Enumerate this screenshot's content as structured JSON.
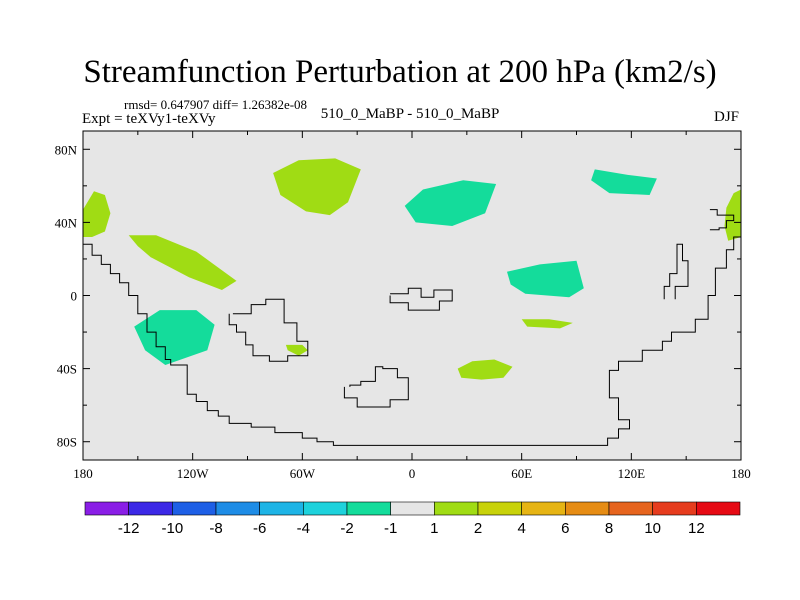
{
  "chart_data": {
    "type": "contour-map",
    "title": "Streamfunction Perturbation at 200 hPa (km2/s)",
    "stats": "rmsd= 0.647907 diff= 1.26382e-08",
    "left_label": "Expt = teXVy1-teXVy",
    "center_label": "510_0_MaBP - 510_0_MaBP",
    "right_label": "DJF",
    "x_ticks": [
      "180",
      "120W",
      "60W",
      "0",
      "60E",
      "120E",
      "180"
    ],
    "x_tick_values": [
      -180,
      -120,
      -60,
      0,
      60,
      120,
      180
    ],
    "y_ticks": [
      "80N",
      "40N",
      "0",
      "40S",
      "80S"
    ],
    "y_tick_values": [
      80,
      40,
      0,
      -40,
      -80
    ],
    "xlim": [
      -180,
      180
    ],
    "ylim": [
      -90,
      90
    ],
    "colorbar": {
      "levels": [
        "-12",
        "-10",
        "-8",
        "-6",
        "-4",
        "-2",
        "-1",
        "1",
        "2",
        "4",
        "6",
        "8",
        "10",
        "12"
      ],
      "colors": [
        "#8a1ee6",
        "#3c28e6",
        "#1e5fe6",
        "#1e8ce6",
        "#1eb4e6",
        "#1ed2dc",
        "#14dc9b",
        "#e6e6e6",
        "#a0dc14",
        "#c8d20a",
        "#e6b414",
        "#e68c14",
        "#e6641e",
        "#e63c1e",
        "#e60a14"
      ]
    },
    "features": [
      {
        "name": "positive anomaly, dateline west",
        "color": "#a0dc14",
        "points": [
          [
            -180,
            47
          ],
          [
            -174,
            57
          ],
          [
            -168,
            55
          ],
          [
            -165,
            45
          ],
          [
            -168,
            35
          ],
          [
            -175,
            32
          ],
          [
            -180,
            32
          ]
        ]
      },
      {
        "name": "positive anomaly, dateline east",
        "color": "#a0dc14",
        "points": [
          [
            180,
            32
          ],
          [
            173,
            30
          ],
          [
            171,
            38
          ],
          [
            172,
            48
          ],
          [
            176,
            56
          ],
          [
            180,
            58
          ]
        ]
      },
      {
        "name": "positive anomaly, north Atlantic",
        "color": "#a0dc14",
        "points": [
          [
            -76,
            67
          ],
          [
            -62,
            74
          ],
          [
            -42,
            75
          ],
          [
            -28,
            69
          ],
          [
            -35,
            51
          ],
          [
            -45,
            44
          ],
          [
            -58,
            46
          ],
          [
            -72,
            55
          ]
        ]
      },
      {
        "name": "positive anomaly, subtropical Pacific",
        "color": "#a0dc14",
        "points": [
          [
            -155,
            33
          ],
          [
            -140,
            33
          ],
          [
            -118,
            24
          ],
          [
            -96,
            8
          ],
          [
            -104,
            3
          ],
          [
            -122,
            10
          ],
          [
            -143,
            21
          ],
          [
            -150,
            27
          ]
        ]
      },
      {
        "name": "positive anomaly, south Atlantic",
        "color": "#a0dc14",
        "points": [
          [
            -69,
            -27
          ],
          [
            -60,
            -27
          ],
          [
            -57,
            -30
          ],
          [
            -62,
            -33
          ],
          [
            -68,
            -30
          ]
        ]
      },
      {
        "name": "positive anomaly, southern Africa",
        "color": "#a0dc14",
        "points": [
          [
            25,
            -40
          ],
          [
            33,
            -36
          ],
          [
            45,
            -35
          ],
          [
            55,
            -39
          ],
          [
            50,
            -45
          ],
          [
            38,
            -46
          ],
          [
            27,
            -45
          ]
        ]
      },
      {
        "name": "positive anomaly, Indian Ocean",
        "color": "#a0dc14",
        "points": [
          [
            60,
            -13
          ],
          [
            75,
            -13
          ],
          [
            88,
            -15
          ],
          [
            81,
            -18
          ],
          [
            63,
            -17
          ]
        ]
      },
      {
        "name": "negative anomaly, Europe",
        "color": "#14dc9b",
        "points": [
          [
            -4,
            49
          ],
          [
            6,
            58
          ],
          [
            28,
            63
          ],
          [
            46,
            61
          ],
          [
            40,
            45
          ],
          [
            22,
            38
          ],
          [
            2,
            40
          ]
        ]
      },
      {
        "name": "negative anomaly, East Asia",
        "color": "#14dc9b",
        "points": [
          [
            100,
            69
          ],
          [
            118,
            66
          ],
          [
            134,
            64
          ],
          [
            130,
            55
          ],
          [
            108,
            56
          ],
          [
            98,
            63
          ]
        ]
      },
      {
        "name": "negative anomaly, Arabian Sea",
        "color": "#14dc9b",
        "points": [
          [
            52,
            13
          ],
          [
            70,
            17
          ],
          [
            90,
            19
          ],
          [
            94,
            4
          ],
          [
            86,
            -1
          ],
          [
            62,
            1
          ],
          [
            54,
            6
          ]
        ]
      },
      {
        "name": "negative anomaly, east Pacific",
        "color": "#14dc9b",
        "points": [
          [
            -152,
            -17
          ],
          [
            -138,
            -8
          ],
          [
            -118,
            -8
          ],
          [
            -108,
            -16
          ],
          [
            -112,
            -30
          ],
          [
            -135,
            -38
          ],
          [
            -146,
            -30
          ]
        ]
      }
    ],
    "coastlines": [
      {
        "name": "coastline, Americas and Antarctica",
        "points": [
          [
            -180,
            28
          ],
          [
            -175,
            28
          ],
          [
            -175,
            22
          ],
          [
            -170,
            22
          ],
          [
            -170,
            17
          ],
          [
            -165,
            17
          ],
          [
            -165,
            12
          ],
          [
            -160,
            12
          ],
          [
            -160,
            7
          ],
          [
            -155,
            7
          ],
          [
            -155,
            0
          ],
          [
            -150,
            0
          ],
          [
            -150,
            -10
          ],
          [
            -145,
            -10
          ],
          [
            -145,
            -20
          ],
          [
            -140,
            -20
          ],
          [
            -140,
            -28
          ],
          [
            -135,
            -28
          ],
          [
            -135,
            -35
          ],
          [
            -132,
            -35
          ],
          [
            -132,
            -38
          ],
          [
            -123,
            -38
          ],
          [
            -123,
            -54
          ],
          [
            -118,
            -54
          ],
          [
            -118,
            -58
          ],
          [
            -112,
            -58
          ],
          [
            -112,
            -63
          ],
          [
            -106,
            -63
          ],
          [
            -106,
            -66
          ],
          [
            -100,
            -66
          ],
          [
            -100,
            -70
          ],
          [
            -88,
            -70
          ],
          [
            -88,
            -72
          ],
          [
            -75,
            -72
          ],
          [
            -75,
            -75
          ],
          [
            -60,
            -75
          ],
          [
            -60,
            -78
          ],
          [
            -52,
            -78
          ],
          [
            -52,
            -80
          ],
          [
            -43,
            -80
          ],
          [
            -43,
            -82
          ],
          [
            107,
            -82
          ],
          [
            107,
            -78
          ],
          [
            113,
            -78
          ],
          [
            113,
            -73
          ],
          [
            119,
            -73
          ],
          [
            119,
            -68
          ],
          [
            113,
            -68
          ],
          [
            113,
            -56
          ],
          [
            108,
            -56
          ],
          [
            108,
            -41
          ],
          [
            113,
            -41
          ],
          [
            113,
            -36
          ],
          [
            126,
            -36
          ],
          [
            126,
            -30
          ],
          [
            137,
            -30
          ],
          [
            137,
            -25
          ],
          [
            142,
            -25
          ],
          [
            142,
            -20
          ],
          [
            155,
            -20
          ],
          [
            155,
            -13
          ],
          [
            162,
            -13
          ],
          [
            162,
            0
          ],
          [
            166,
            0
          ],
          [
            166,
            15
          ],
          [
            172,
            15
          ],
          [
            172,
            25
          ],
          [
            176,
            25
          ],
          [
            176,
            32
          ],
          [
            180,
            32
          ]
        ]
      },
      {
        "name": "coastline, South America",
        "points": [
          [
            -98,
            -10
          ],
          [
            -88,
            -10
          ],
          [
            -88,
            -5
          ],
          [
            -80,
            -5
          ],
          [
            -80,
            -2
          ],
          [
            -70,
            -2
          ],
          [
            -70,
            -15
          ],
          [
            -63,
            -15
          ],
          [
            -63,
            -25
          ],
          [
            -57,
            -25
          ],
          [
            -57,
            -33
          ],
          [
            -68,
            -33
          ],
          [
            -68,
            -36
          ],
          [
            -78,
            -36
          ],
          [
            -78,
            -33
          ],
          [
            -87,
            -33
          ],
          [
            -87,
            -27
          ],
          [
            -91,
            -27
          ],
          [
            -91,
            -20
          ],
          [
            -96,
            -20
          ],
          [
            -96,
            -16
          ],
          [
            -100,
            -16
          ],
          [
            -100,
            -10
          ]
        ]
      },
      {
        "name": "coastline, Africa",
        "points": [
          [
            -12,
            1
          ],
          [
            -2,
            1
          ],
          [
            -2,
            4
          ],
          [
            5,
            4
          ],
          [
            5,
            -1
          ],
          [
            12,
            -1
          ],
          [
            12,
            3
          ],
          [
            22,
            3
          ],
          [
            22,
            -3
          ],
          [
            15,
            -3
          ],
          [
            15,
            -8
          ],
          [
            -2,
            -8
          ],
          [
            -2,
            -4
          ],
          [
            -12,
            -4
          ],
          [
            -12,
            0
          ]
        ]
      },
      {
        "name": "coastline, Australia",
        "points": [
          [
            -37,
            -50
          ],
          [
            -37,
            -56
          ],
          [
            -30,
            -56
          ],
          [
            -30,
            -61
          ],
          [
            -12,
            -61
          ],
          [
            -12,
            -57
          ],
          [
            -2,
            -57
          ],
          [
            -2,
            -45
          ],
          [
            -8,
            -45
          ],
          [
            -8,
            -40
          ],
          [
            -16,
            -40
          ],
          [
            -16,
            -39
          ],
          [
            -20,
            -39
          ],
          [
            -20,
            -47
          ],
          [
            -28,
            -47
          ],
          [
            -28,
            -49
          ],
          [
            -34,
            -49
          ],
          [
            -34,
            -50
          ]
        ]
      },
      {
        "name": "coastline, eastern island",
        "points": [
          [
            163,
            36
          ],
          [
            168,
            36
          ],
          [
            168,
            37
          ],
          [
            172,
            37
          ],
          [
            172,
            41
          ],
          [
            176,
            41
          ],
          [
            176,
            44
          ],
          [
            167,
            44
          ],
          [
            167,
            47
          ],
          [
            163,
            47
          ]
        ]
      },
      {
        "name": "coastline, western Pacific",
        "points": [
          [
            138,
            -2
          ],
          [
            138,
            5
          ],
          [
            141,
            5
          ],
          [
            141,
            12
          ],
          [
            145,
            12
          ],
          [
            145,
            28
          ],
          [
            148,
            28
          ],
          [
            148,
            19
          ],
          [
            151,
            19
          ],
          [
            151,
            5
          ],
          [
            144,
            5
          ],
          [
            144,
            -2
          ]
        ]
      }
    ]
  }
}
